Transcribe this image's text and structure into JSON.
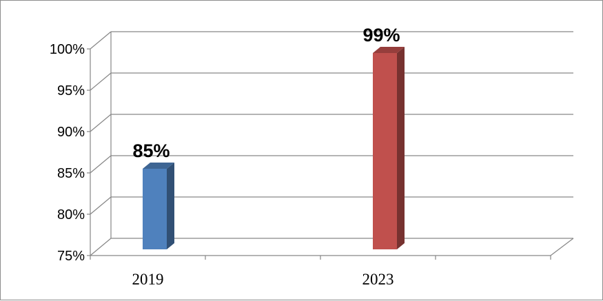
{
  "chart_data": {
    "type": "bar",
    "categories": [
      "2019",
      "2023"
    ],
    "values": [
      85,
      99
    ],
    "data_labels": [
      "85%",
      "99%"
    ],
    "colors": [
      "#4F81BD",
      "#C0504D"
    ],
    "yticks": [
      75,
      80,
      85,
      90,
      95,
      100
    ],
    "ytick_labels": [
      "75%",
      "80%",
      "85%",
      "90%",
      "95%",
      "100%"
    ],
    "ylim": [
      75,
      100
    ],
    "grid": true,
    "style": "3d-column"
  }
}
